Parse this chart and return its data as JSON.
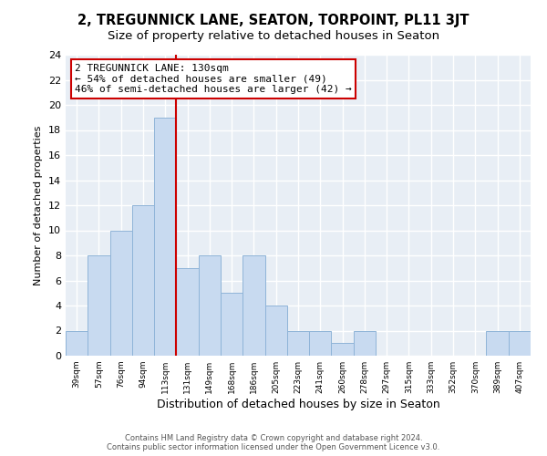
{
  "title": "2, TREGUNNICK LANE, SEATON, TORPOINT, PL11 3JT",
  "subtitle": "Size of property relative to detached houses in Seaton",
  "xlabel": "Distribution of detached houses by size in Seaton",
  "ylabel": "Number of detached properties",
  "categories": [
    "39sqm",
    "57sqm",
    "76sqm",
    "94sqm",
    "113sqm",
    "131sqm",
    "149sqm",
    "168sqm",
    "186sqm",
    "205sqm",
    "223sqm",
    "241sqm",
    "260sqm",
    "278sqm",
    "297sqm",
    "315sqm",
    "333sqm",
    "352sqm",
    "370sqm",
    "389sqm",
    "407sqm"
  ],
  "bar_values": [
    2,
    8,
    10,
    12,
    19,
    7,
    8,
    5,
    8,
    4,
    2,
    2,
    1,
    2,
    0,
    0,
    0,
    0,
    0,
    2,
    2
  ],
  "bar_color": "#c8daf0",
  "bar_edge_color": "#8fb4d8",
  "reference_line_x": 4.5,
  "reference_line_color": "#cc0000",
  "annotation_text": "2 TREGUNNICK LANE: 130sqm\n← 54% of detached houses are smaller (49)\n46% of semi-detached houses are larger (42) →",
  "annotation_box_facecolor": "#ffffff",
  "annotation_box_edgecolor": "#cc0000",
  "ylim": [
    0,
    24
  ],
  "yticks": [
    0,
    2,
    4,
    6,
    8,
    10,
    12,
    14,
    16,
    18,
    20,
    22,
    24
  ],
  "footer_line1": "Contains HM Land Registry data © Crown copyright and database right 2024.",
  "footer_line2": "Contains public sector information licensed under the Open Government Licence v3.0.",
  "bg_color": "#ffffff",
  "plot_bg_color": "#e8eef5",
  "grid_color": "#ffffff",
  "title_fontsize": 10.5,
  "subtitle_fontsize": 9.5,
  "ylabel_fontsize": 8,
  "xlabel_fontsize": 9
}
